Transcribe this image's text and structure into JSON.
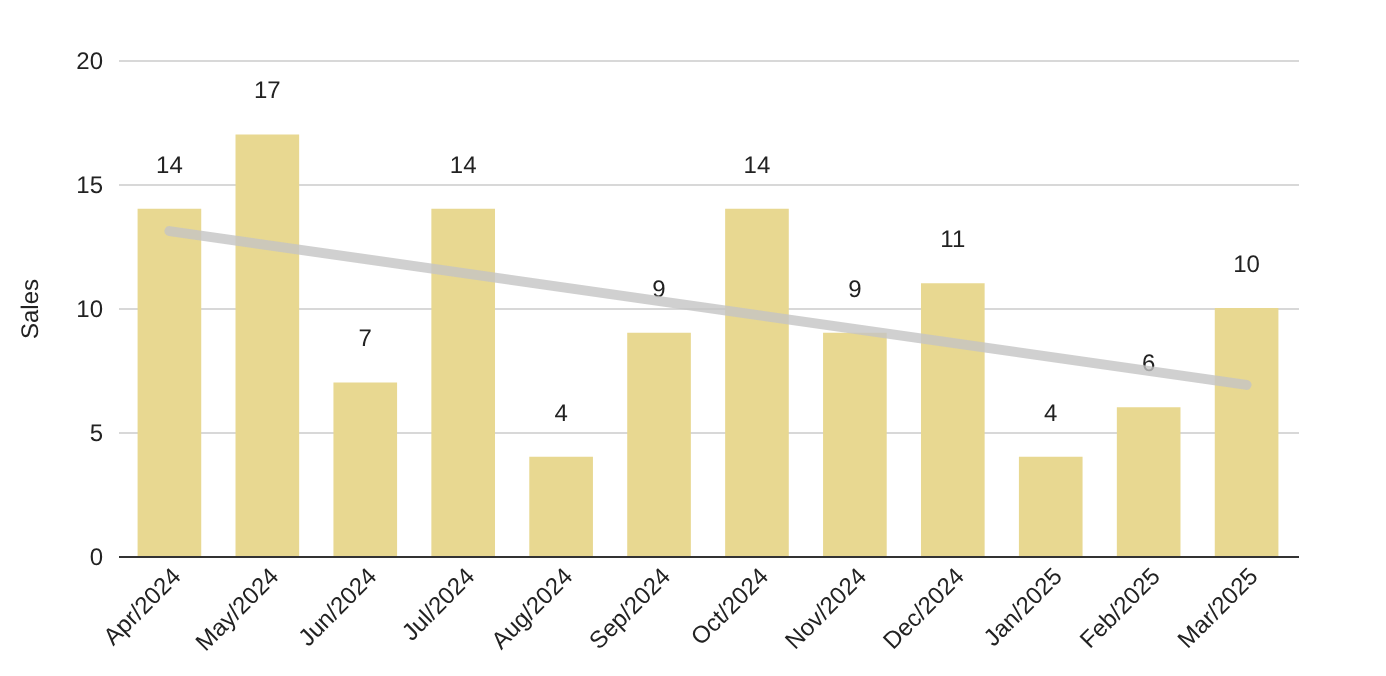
{
  "chart_data": {
    "type": "bar",
    "ylabel": "Sales",
    "categories": [
      "Apr/2024",
      "May/2024",
      "Jun/2024",
      "Jul/2024",
      "Aug/2024",
      "Sep/2024",
      "Oct/2024",
      "Nov/2024",
      "Dec/2024",
      "Jan/2025",
      "Feb/2025",
      "Mar/2025"
    ],
    "series": [
      {
        "color": "#e8d891",
        "values": [
          14,
          17,
          7,
          14,
          4,
          9,
          14,
          9,
          11,
          4,
          6,
          10
        ],
        "value_labels": [
          "14",
          "17",
          "7",
          "14",
          "4",
          "9",
          "14",
          "9",
          "11",
          "4",
          "6",
          "10"
        ]
      },
      {
        "type": "line",
        "color": "#c4c4c4",
        "x": [
          "Apr/2024",
          "Mar/2025"
        ],
        "values": [
          13.1,
          6.9
        ]
      }
    ],
    "ylim": [
      0,
      20
    ],
    "yticks": [
      0,
      5,
      10,
      15,
      20
    ],
    "grid": "y"
  }
}
